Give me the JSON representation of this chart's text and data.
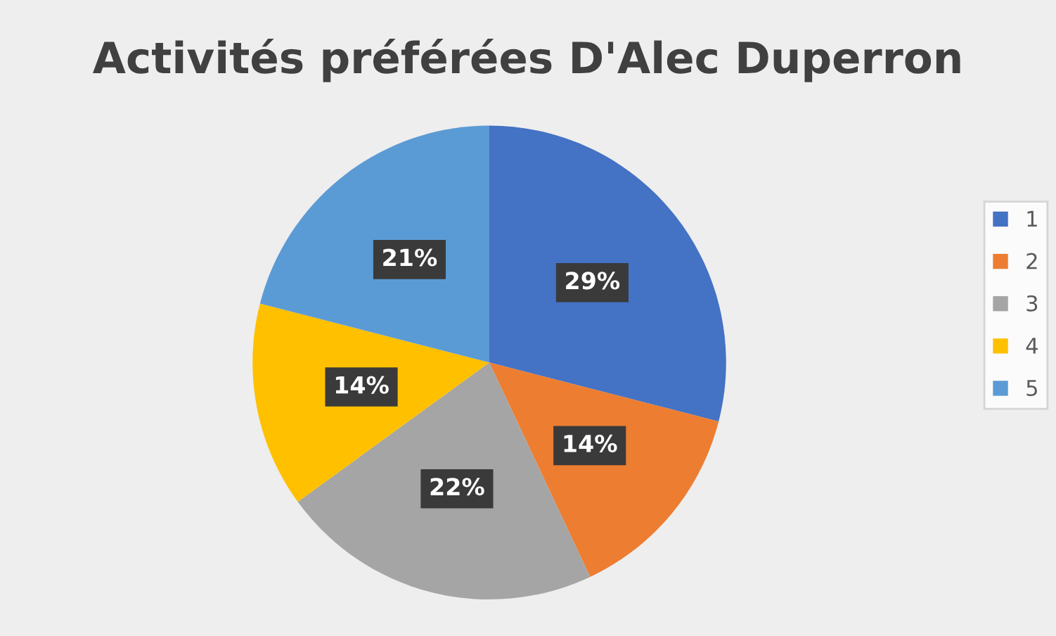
{
  "chart_data": {
    "type": "pie",
    "title": "Activités préférées D'Alec Duperron",
    "categories": [
      "1",
      "2",
      "3",
      "4",
      "5"
    ],
    "values": [
      29,
      14,
      22,
      14,
      21
    ],
    "value_labels": [
      "29%",
      "14%",
      "22%",
      "14%",
      "21%"
    ],
    "colors": [
      "#4472c4",
      "#ed7d31",
      "#a5a5a5",
      "#ffc000",
      "#5b9bd5"
    ],
    "legend": "right"
  }
}
